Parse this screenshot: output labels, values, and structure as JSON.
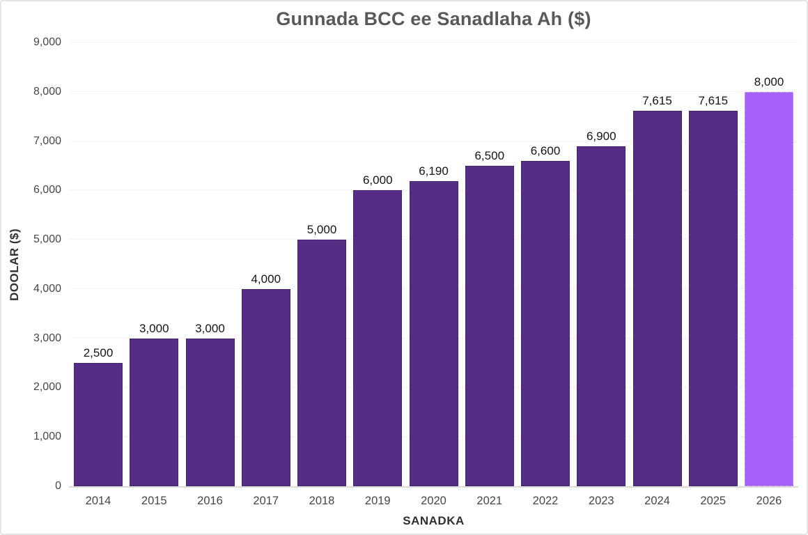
{
  "chart_data": {
    "type": "bar",
    "title": "Gunnada BCC ee Sanadlaha Ah ($)",
    "xlabel": "SANADKA",
    "ylabel": "DOOLAR ($)",
    "categories": [
      "2014",
      "2015",
      "2016",
      "2017",
      "2018",
      "2019",
      "2020",
      "2021",
      "2022",
      "2023",
      "2024",
      "2025",
      "2026"
    ],
    "values": [
      2500,
      3000,
      3000,
      4000,
      5000,
      6000,
      6190,
      6500,
      6600,
      6900,
      7615,
      7615,
      8000
    ],
    "value_labels": [
      "2,500",
      "3,000",
      "3,000",
      "4,000",
      "5,000",
      "6,000",
      "6,190",
      "6,500",
      "6,600",
      "6,900",
      "7,615",
      "7,615",
      "8,000"
    ],
    "ylim": [
      0,
      9000
    ],
    "ytick_step": 1000,
    "ytick_labels": [
      "0",
      "1,000",
      "2,000",
      "3,000",
      "4,000",
      "5,000",
      "6,000",
      "7,000",
      "8,000",
      "9,000"
    ],
    "grid": "horizontal-faint",
    "legend": "none",
    "bar_color": "#562D85",
    "highlight_color": "#A55FFA",
    "highlight_index": 12
  },
  "colors": {
    "background": "#ffffff",
    "frame_border": "#e4e4e4",
    "title_text": "#595959",
    "tick_text": "#464646",
    "value_label_text": "#141414",
    "gridline": "#f3f3f3",
    "axis_line": "#dcdcdc"
  }
}
